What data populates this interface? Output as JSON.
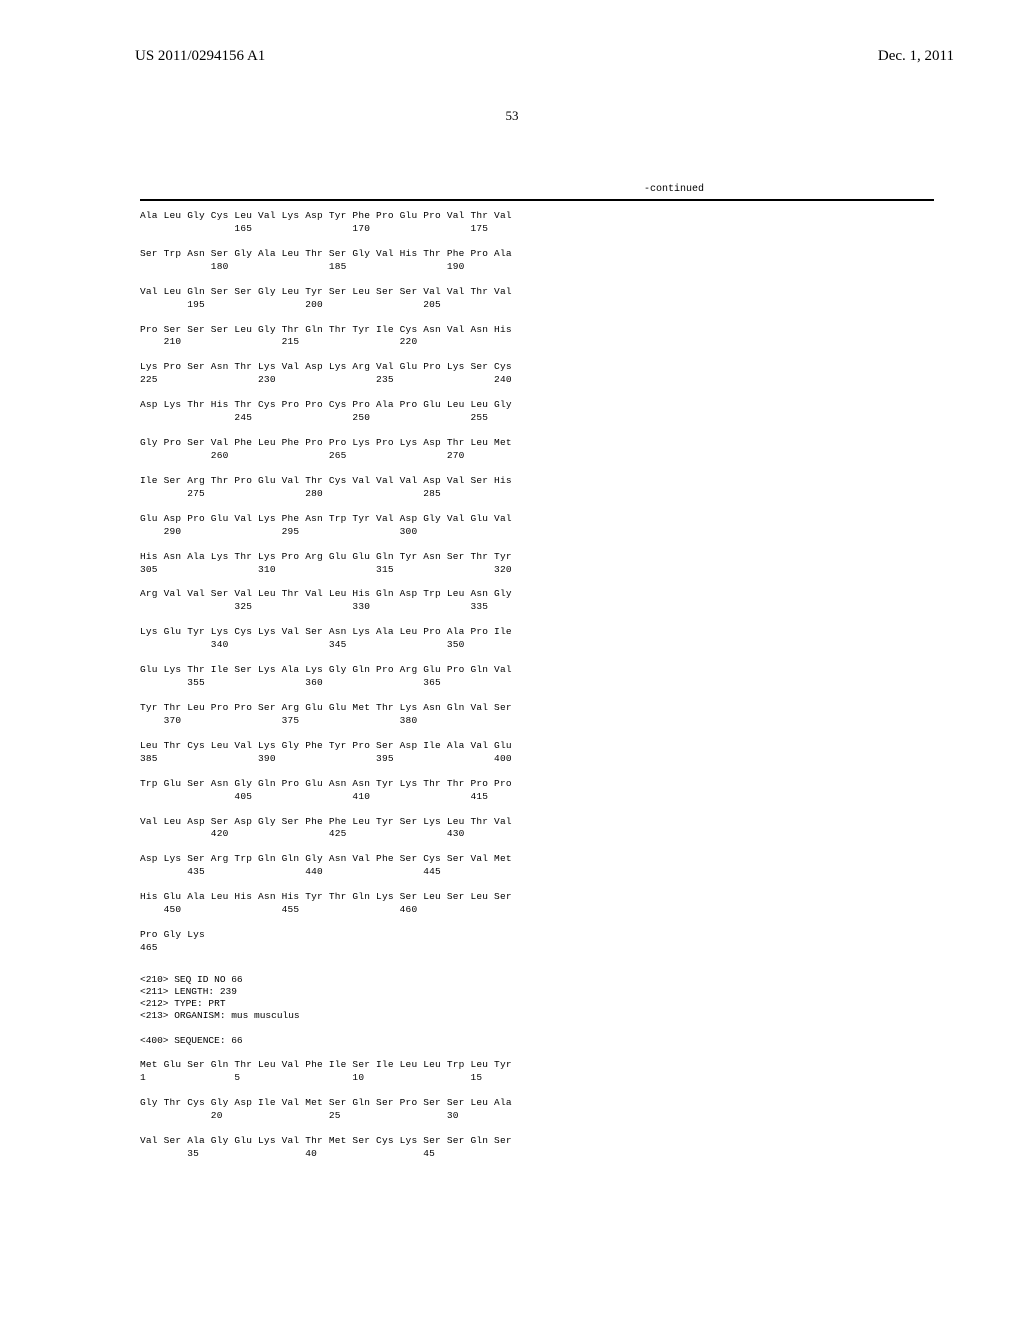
{
  "header": {
    "left": "US 2011/0294156 A1",
    "right": "Dec. 1, 2011"
  },
  "page_number": "53",
  "continued_label": "-continued",
  "sequence_65": {
    "rows": [
      {
        "aa": "Ala Leu Gly Cys Leu Val Lys Asp Tyr Phe Pro Glu Pro Val Thr Val",
        "pos": "                165                 170                 175"
      },
      {
        "aa": "Ser Trp Asn Ser Gly Ala Leu Thr Ser Gly Val His Thr Phe Pro Ala",
        "pos": "            180                 185                 190"
      },
      {
        "aa": "Val Leu Gln Ser Ser Gly Leu Tyr Ser Leu Ser Ser Val Val Thr Val",
        "pos": "        195                 200                 205"
      },
      {
        "aa": "Pro Ser Ser Ser Leu Gly Thr Gln Thr Tyr Ile Cys Asn Val Asn His",
        "pos": "    210                 215                 220"
      },
      {
        "aa": "Lys Pro Ser Asn Thr Lys Val Asp Lys Arg Val Glu Pro Lys Ser Cys",
        "pos": "225                 230                 235                 240"
      },
      {
        "aa": "Asp Lys Thr His Thr Cys Pro Pro Cys Pro Ala Pro Glu Leu Leu Gly",
        "pos": "                245                 250                 255"
      },
      {
        "aa": "Gly Pro Ser Val Phe Leu Phe Pro Pro Lys Pro Lys Asp Thr Leu Met",
        "pos": "            260                 265                 270"
      },
      {
        "aa": "Ile Ser Arg Thr Pro Glu Val Thr Cys Val Val Val Asp Val Ser His",
        "pos": "        275                 280                 285"
      },
      {
        "aa": "Glu Asp Pro Glu Val Lys Phe Asn Trp Tyr Val Asp Gly Val Glu Val",
        "pos": "    290                 295                 300"
      },
      {
        "aa": "His Asn Ala Lys Thr Lys Pro Arg Glu Glu Gln Tyr Asn Ser Thr Tyr",
        "pos": "305                 310                 315                 320"
      },
      {
        "aa": "Arg Val Val Ser Val Leu Thr Val Leu His Gln Asp Trp Leu Asn Gly",
        "pos": "                325                 330                 335"
      },
      {
        "aa": "Lys Glu Tyr Lys Cys Lys Val Ser Asn Lys Ala Leu Pro Ala Pro Ile",
        "pos": "            340                 345                 350"
      },
      {
        "aa": "Glu Lys Thr Ile Ser Lys Ala Lys Gly Gln Pro Arg Glu Pro Gln Val",
        "pos": "        355                 360                 365"
      },
      {
        "aa": "Tyr Thr Leu Pro Pro Ser Arg Glu Glu Met Thr Lys Asn Gln Val Ser",
        "pos": "    370                 375                 380"
      },
      {
        "aa": "Leu Thr Cys Leu Val Lys Gly Phe Tyr Pro Ser Asp Ile Ala Val Glu",
        "pos": "385                 390                 395                 400"
      },
      {
        "aa": "Trp Glu Ser Asn Gly Gln Pro Glu Asn Asn Tyr Lys Thr Thr Pro Pro",
        "pos": "                405                 410                 415"
      },
      {
        "aa": "Val Leu Asp Ser Asp Gly Ser Phe Phe Leu Tyr Ser Lys Leu Thr Val",
        "pos": "            420                 425                 430"
      },
      {
        "aa": "Asp Lys Ser Arg Trp Gln Gln Gly Asn Val Phe Ser Cys Ser Val Met",
        "pos": "        435                 440                 445"
      },
      {
        "aa": "His Glu Ala Leu His Asn His Tyr Thr Gln Lys Ser Leu Ser Leu Ser",
        "pos": "    450                 455                 460"
      },
      {
        "aa": "Pro Gly Lys",
        "pos": "465"
      }
    ]
  },
  "sequence_66": {
    "meta": [
      "<210> SEQ ID NO 66",
      "<211> LENGTH: 239",
      "<212> TYPE: PRT",
      "<213> ORGANISM: mus musculus"
    ],
    "header": "<400> SEQUENCE: 66",
    "rows": [
      {
        "aa": "Met Glu Ser Gln Thr Leu Val Phe Ile Ser Ile Leu Leu Trp Leu Tyr",
        "pos": "1               5                   10                  15"
      },
      {
        "aa": "Gly Thr Cys Gly Asp Ile Val Met Ser Gln Ser Pro Ser Ser Leu Ala",
        "pos": "            20                  25                  30"
      },
      {
        "aa": "Val Ser Ala Gly Glu Lys Val Thr Met Ser Cys Lys Ser Ser Gln Ser",
        "pos": "        35                  40                  45"
      }
    ]
  }
}
